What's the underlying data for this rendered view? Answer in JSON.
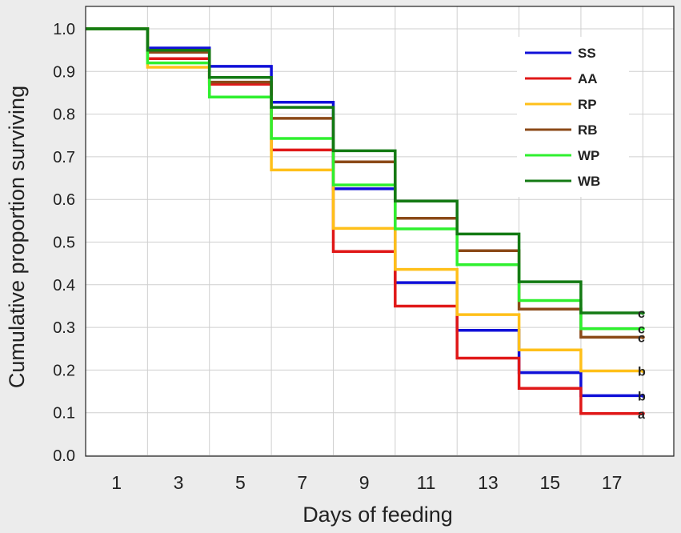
{
  "chart_data": {
    "type": "line",
    "subtype": "step (Kaplan-Meier survival curves)",
    "xlabel": "Days of feeding",
    "ylabel": "Cumulative proportion surviving",
    "xlim": [
      0,
      19
    ],
    "ylim": [
      0.0,
      1.0
    ],
    "x_ticks": [
      1,
      3,
      5,
      7,
      9,
      11,
      13,
      15,
      17
    ],
    "y_ticks": [
      "0.0",
      "0.1",
      "0.2",
      "0.3",
      "0.4",
      "0.5",
      "0.6",
      "0.7",
      "0.8",
      "0.9",
      "1.0"
    ],
    "step_x": [
      0,
      2,
      4,
      6,
      8,
      10,
      12,
      14,
      16,
      18
    ],
    "grid": true,
    "legend_position": "top-right",
    "series": [
      {
        "name": "SS",
        "color": "#1010d8",
        "values": [
          1.0,
          0.955,
          0.912,
          0.828,
          0.625,
          0.405,
          0.293,
          0.194,
          0.14,
          0.14
        ],
        "group": "b"
      },
      {
        "name": "AA",
        "color": "#e01818",
        "values": [
          1.0,
          0.93,
          0.87,
          0.716,
          0.478,
          0.35,
          0.228,
          0.157,
          0.098,
          0.098
        ],
        "group": "a"
      },
      {
        "name": "RP",
        "color": "#ffc01a",
        "values": [
          1.0,
          0.91,
          0.84,
          0.669,
          0.532,
          0.436,
          0.33,
          0.247,
          0.198,
          0.198
        ],
        "group": "b"
      },
      {
        "name": "RB",
        "color": "#8b4a18",
        "values": [
          1.0,
          0.945,
          0.875,
          0.79,
          0.688,
          0.556,
          0.48,
          0.343,
          0.277,
          0.277
        ],
        "group": "c"
      },
      {
        "name": "WP",
        "color": "#2ff02f",
        "values": [
          1.0,
          0.92,
          0.84,
          0.743,
          0.634,
          0.531,
          0.447,
          0.363,
          0.297,
          0.297
        ],
        "group": "c"
      },
      {
        "name": "WB",
        "color": "#137a13",
        "values": [
          1.0,
          0.95,
          0.886,
          0.816,
          0.714,
          0.596,
          0.519,
          0.407,
          0.334,
          0.334
        ],
        "group": "c"
      }
    ],
    "annotations": [
      {
        "text": "c",
        "value": 0.334
      },
      {
        "text": "c",
        "value": 0.297
      },
      {
        "text": "c",
        "value": 0.277
      },
      {
        "text": "b",
        "value": 0.198
      },
      {
        "text": "b",
        "value": 0.14
      },
      {
        "text": "a",
        "value": 0.098
      }
    ]
  }
}
